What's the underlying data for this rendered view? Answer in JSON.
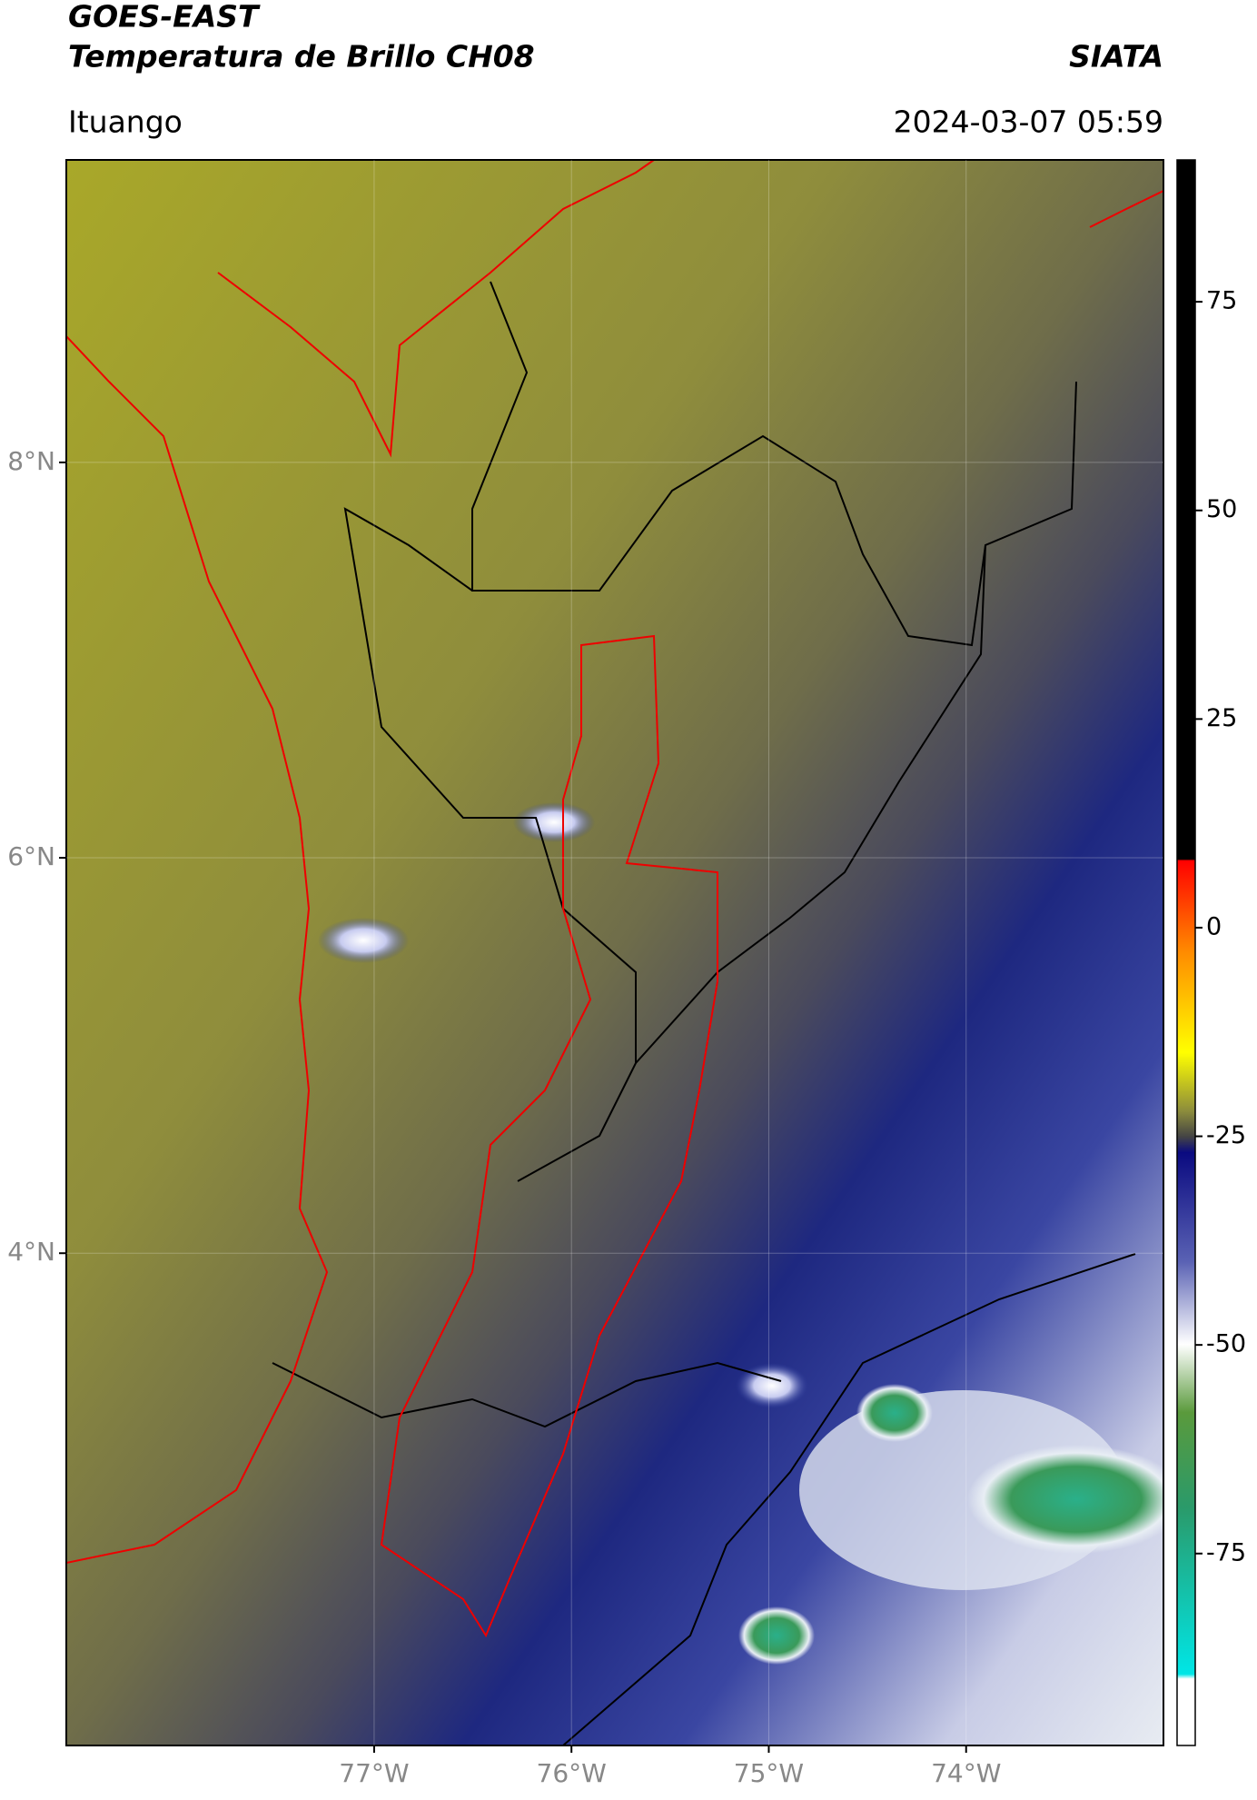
{
  "header": {
    "title": "GOES-EAST",
    "subtitle": "Temperatura de Brillo CH08",
    "source": "SIATA",
    "location": "Ituango",
    "datetime": "2024-03-07 05:59"
  },
  "map": {
    "lonlim": [
      -78.56,
      -73.0
    ],
    "latlim": [
      1.51,
      9.53
    ],
    "lat_ticks": [
      {
        "value": 8,
        "label": "8°N"
      },
      {
        "value": 6,
        "label": "6°N"
      },
      {
        "value": 4,
        "label": "4°N"
      }
    ],
    "lon_ticks": [
      {
        "value": -77,
        "label": "77°W"
      },
      {
        "value": -76,
        "label": "76°W"
      },
      {
        "value": -75,
        "label": "75°W"
      },
      {
        "value": -74,
        "label": "74°W"
      }
    ]
  },
  "colorbar": {
    "range": [
      -98,
      92
    ],
    "ticks": [
      75,
      50,
      25,
      0,
      -25,
      -50,
      -75
    ]
  }
}
